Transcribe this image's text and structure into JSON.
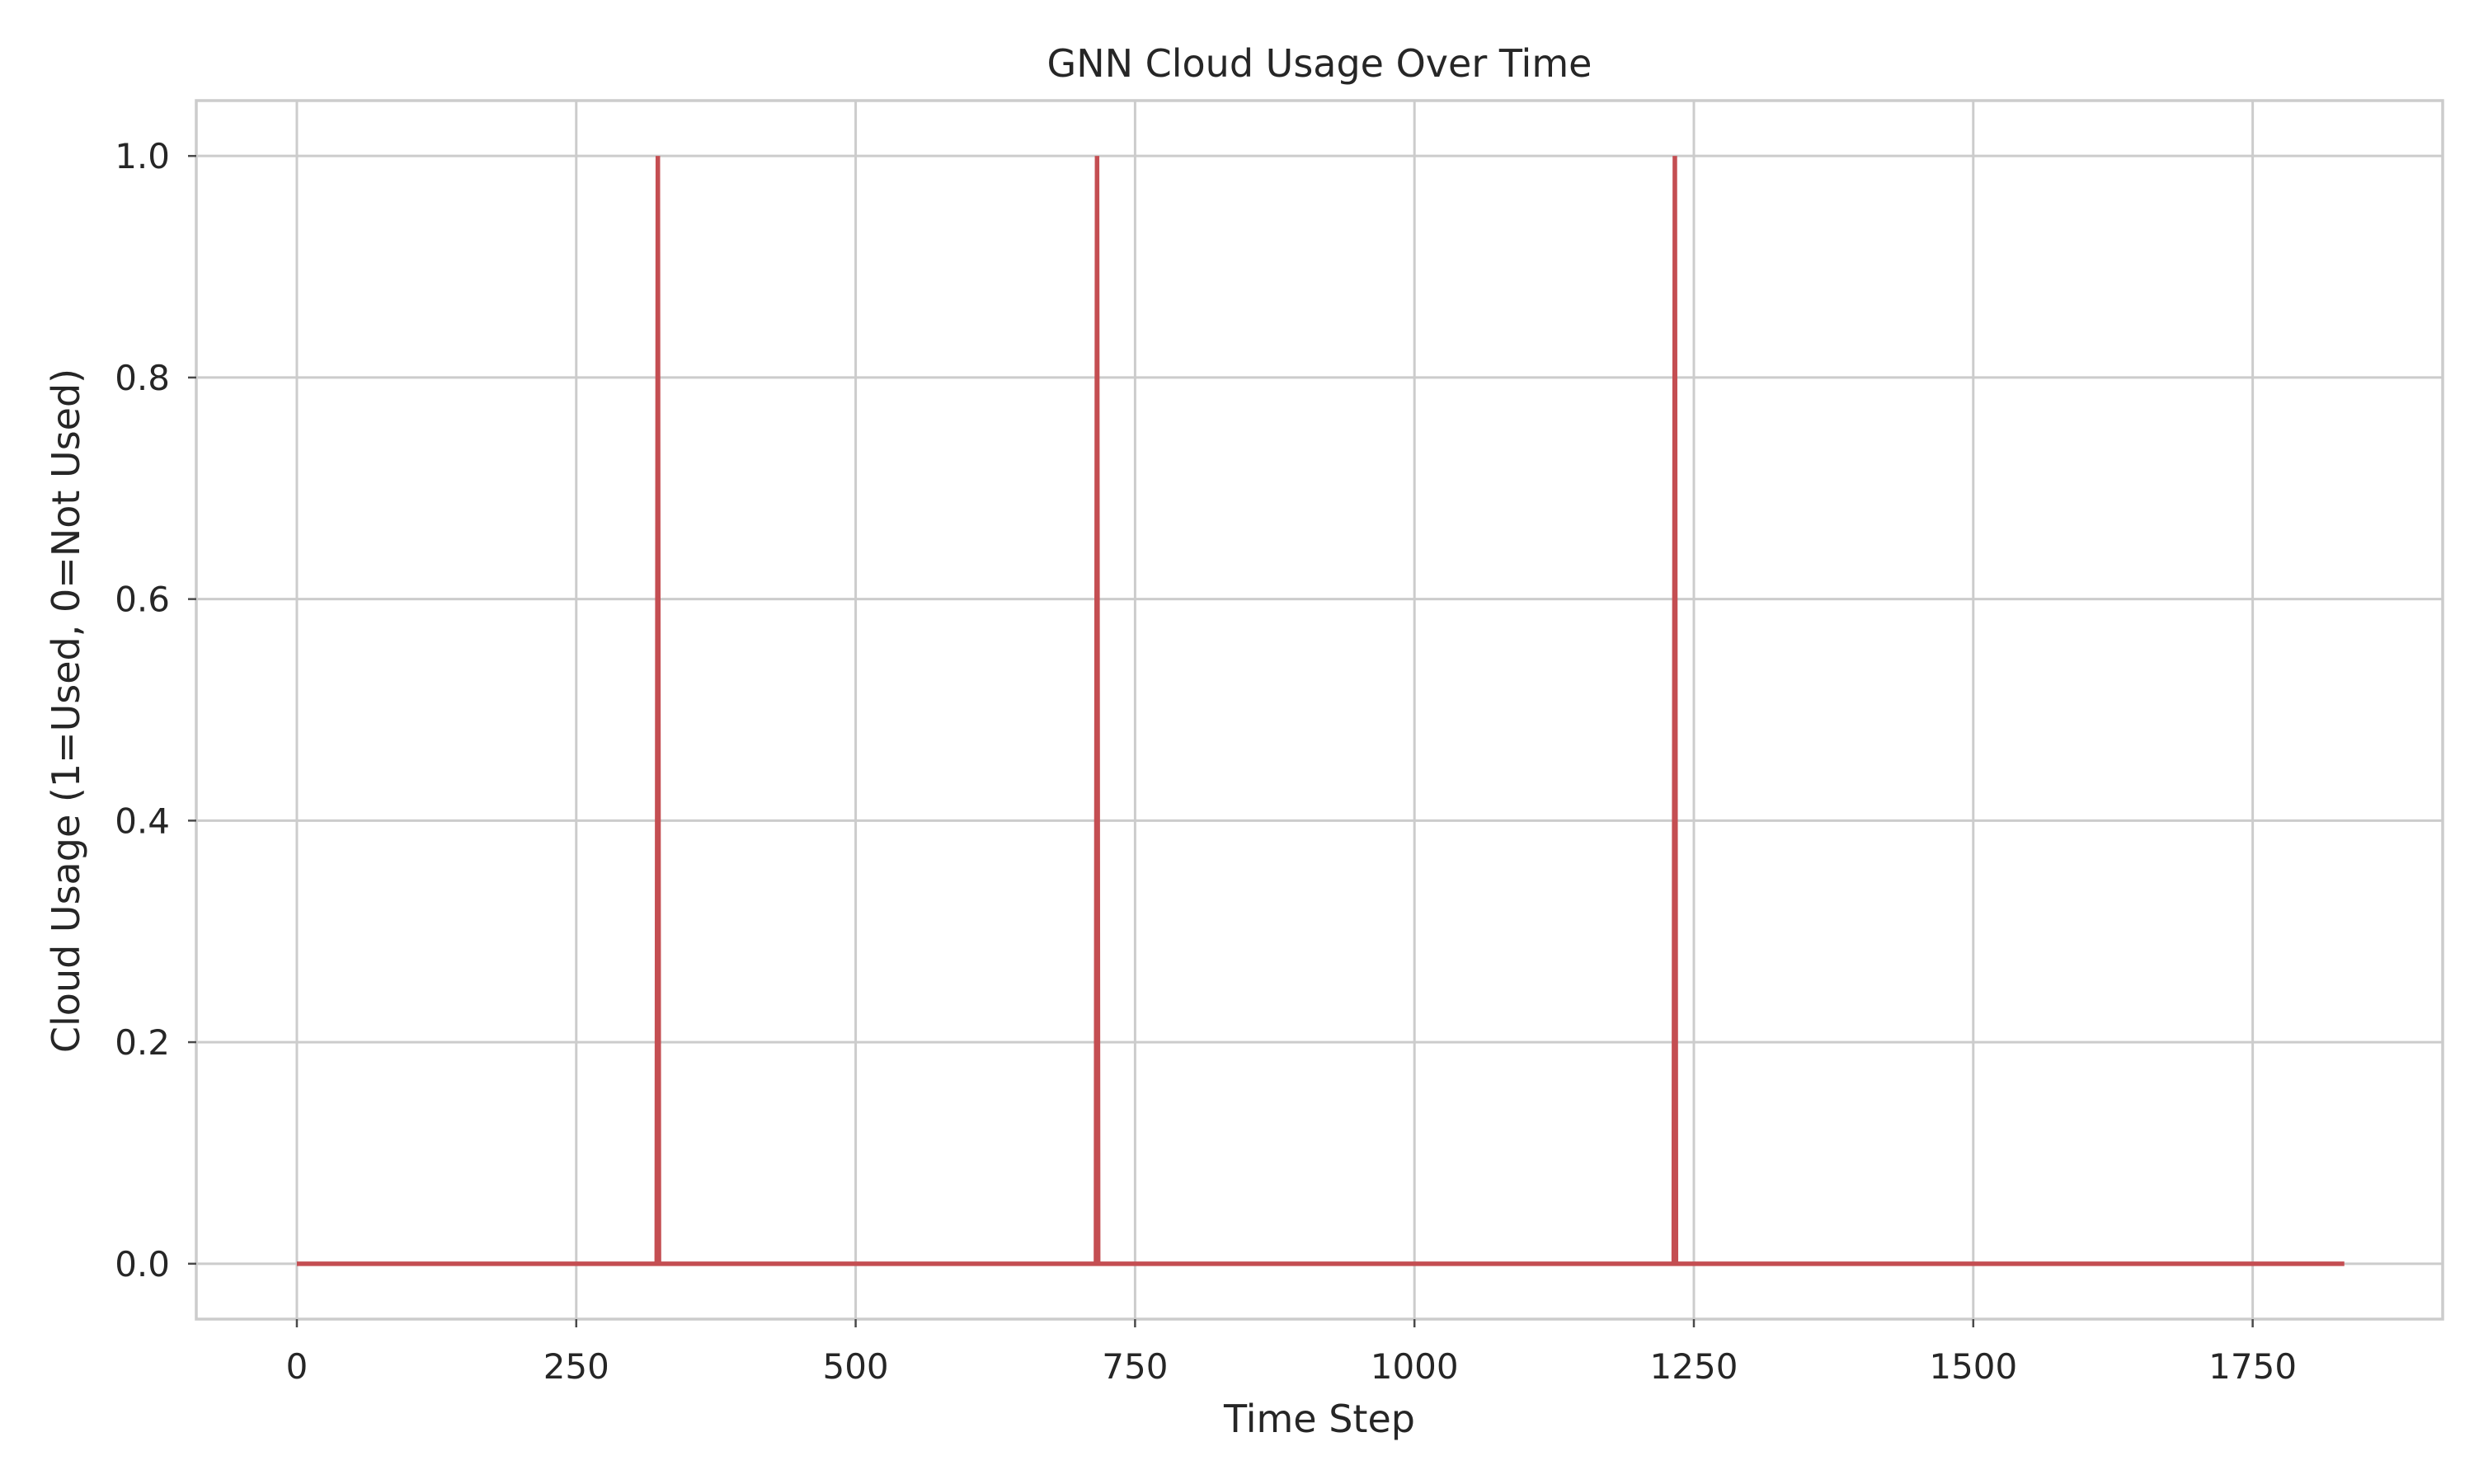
{
  "chart_data": {
    "type": "line",
    "title": "GNN Cloud Usage Over Time",
    "xlabel": "Time Step",
    "ylabel": "Cloud Usage (1=Used, 0=Not Used)",
    "xlim": [
      -90,
      1920
    ],
    "ylim": [
      -0.05,
      1.05
    ],
    "xticks": [
      0,
      250,
      500,
      750,
      1000,
      1250,
      1500,
      1750
    ],
    "xtick_labels": [
      "0",
      "250",
      "500",
      "750",
      "1000",
      "1250",
      "1500",
      "1750"
    ],
    "yticks": [
      0.0,
      0.2,
      0.4,
      0.6,
      0.8,
      1.0
    ],
    "ytick_labels": [
      "0.0",
      "0.2",
      "0.4",
      "0.6",
      "0.8",
      "1.0"
    ],
    "grid": true,
    "legend": "none",
    "series": [
      {
        "color": "#c44e52",
        "x": [
          0,
          322,
          323,
          324,
          715,
          716,
          717,
          1232,
          1233,
          1234,
          1832
        ],
        "y": [
          0,
          0,
          1,
          0,
          0,
          1,
          0,
          0,
          1,
          0,
          0
        ]
      }
    ]
  }
}
